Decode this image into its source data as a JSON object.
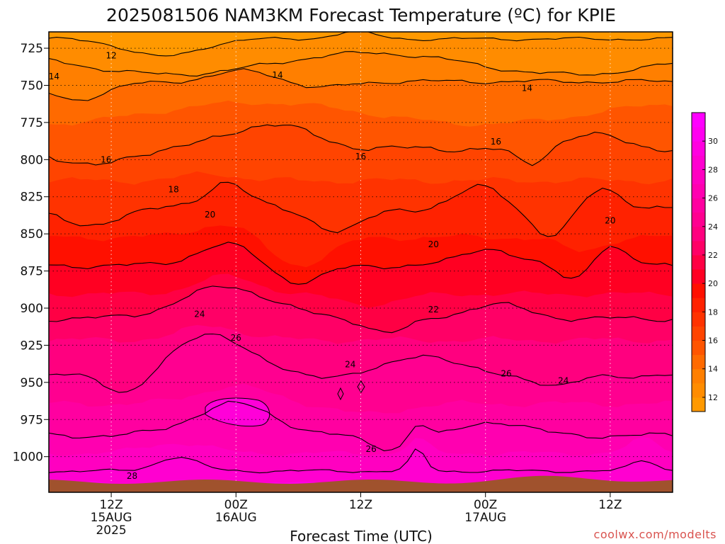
{
  "chart_data": {
    "type": "heatmap",
    "title": "2025081506 NAM3KM Forecast Temperature (ºC) for KPIE",
    "xlabel": "Forecast Time (UTC)",
    "ylabel": "",
    "credit": "coolwx.com/modelts",
    "y_scale": "linear",
    "y_inverted": true,
    "units": "ºC",
    "y_ticks": [
      "725",
      "750",
      "775",
      "800",
      "825",
      "850",
      "875",
      "900",
      "925",
      "950",
      "975",
      "1000"
    ],
    "y_tick_values": [
      725,
      750,
      775,
      800,
      825,
      850,
      875,
      900,
      925,
      950,
      975,
      1000
    ],
    "x_ticks": [
      {
        "line1": "12Z",
        "line2": "15AUG",
        "line3": "2025"
      },
      {
        "line1": "00Z",
        "line2": "16AUG",
        "line3": ""
      },
      {
        "line1": "12Z",
        "line2": "",
        "line3": ""
      },
      {
        "line1": "00Z",
        "line2": "17AUG",
        "line3": ""
      },
      {
        "line1": "12Z",
        "line2": "",
        "line3": ""
      }
    ],
    "x_tick_hours": [
      12,
      24,
      36,
      48,
      60
    ],
    "xlim_hours": [
      6,
      66
    ],
    "ylim_hpa": [
      714,
      1024
    ],
    "grid": true,
    "colorbar": {
      "ticks": [
        "12",
        "14",
        "16",
        "18",
        "20",
        "22",
        "24",
        "26",
        "28",
        "30"
      ],
      "tick_values": [
        12,
        14,
        16,
        18,
        20,
        22,
        24,
        26,
        28,
        30
      ],
      "levels": [
        10,
        12,
        13,
        14,
        15,
        16,
        17,
        18,
        19,
        20,
        21,
        22,
        23,
        24,
        25,
        26,
        27,
        28,
        29,
        30,
        31,
        32
      ],
      "colors": [
        "#ff9900",
        "#ff8c00",
        "#ff7f00",
        "#ff6a00",
        "#ff5500",
        "#ff4400",
        "#ff3300",
        "#ff2200",
        "#ff1000",
        "#ff0022",
        "#ff0044",
        "#ff0066",
        "#ff007f",
        "#ff0090",
        "#ff00a0",
        "#ff00b0",
        "#ff00c0",
        "#ff00d0",
        "#ff00e0",
        "#ff00f0",
        "#ff00ff"
      ]
    },
    "surface_color": "#a0522d",
    "contour_labels": [
      {
        "text": "12",
        "hour": 12.0,
        "hpa": 730
      },
      {
        "text": "14",
        "hour": 6.5,
        "hpa": 744
      },
      {
        "text": "14",
        "hour": 28.0,
        "hpa": 743
      },
      {
        "text": "14",
        "hour": 52.0,
        "hpa": 752
      },
      {
        "text": "16",
        "hour": 11.5,
        "hpa": 800
      },
      {
        "text": "16",
        "hour": 36.0,
        "hpa": 798
      },
      {
        "text": "16",
        "hour": 49.0,
        "hpa": 788
      },
      {
        "text": "18",
        "hour": 18.0,
        "hpa": 820
      },
      {
        "text": "20",
        "hour": 21.5,
        "hpa": 837
      },
      {
        "text": "20",
        "hour": 43.0,
        "hpa": 857
      },
      {
        "text": "20",
        "hour": 60.0,
        "hpa": 841
      },
      {
        "text": "22",
        "hour": 43.0,
        "hpa": 901
      },
      {
        "text": "24",
        "hour": 20.5,
        "hpa": 904
      },
      {
        "text": "24",
        "hour": 35.0,
        "hpa": 938
      },
      {
        "text": "24",
        "hour": 55.5,
        "hpa": 949
      },
      {
        "text": "26",
        "hour": 24.0,
        "hpa": 920
      },
      {
        "text": "26",
        "hour": 50.0,
        "hpa": 944
      },
      {
        "text": "26",
        "hour": 37.0,
        "hpa": 995
      },
      {
        "text": "28",
        "hour": 14.0,
        "hpa": 1013
      }
    ]
  }
}
